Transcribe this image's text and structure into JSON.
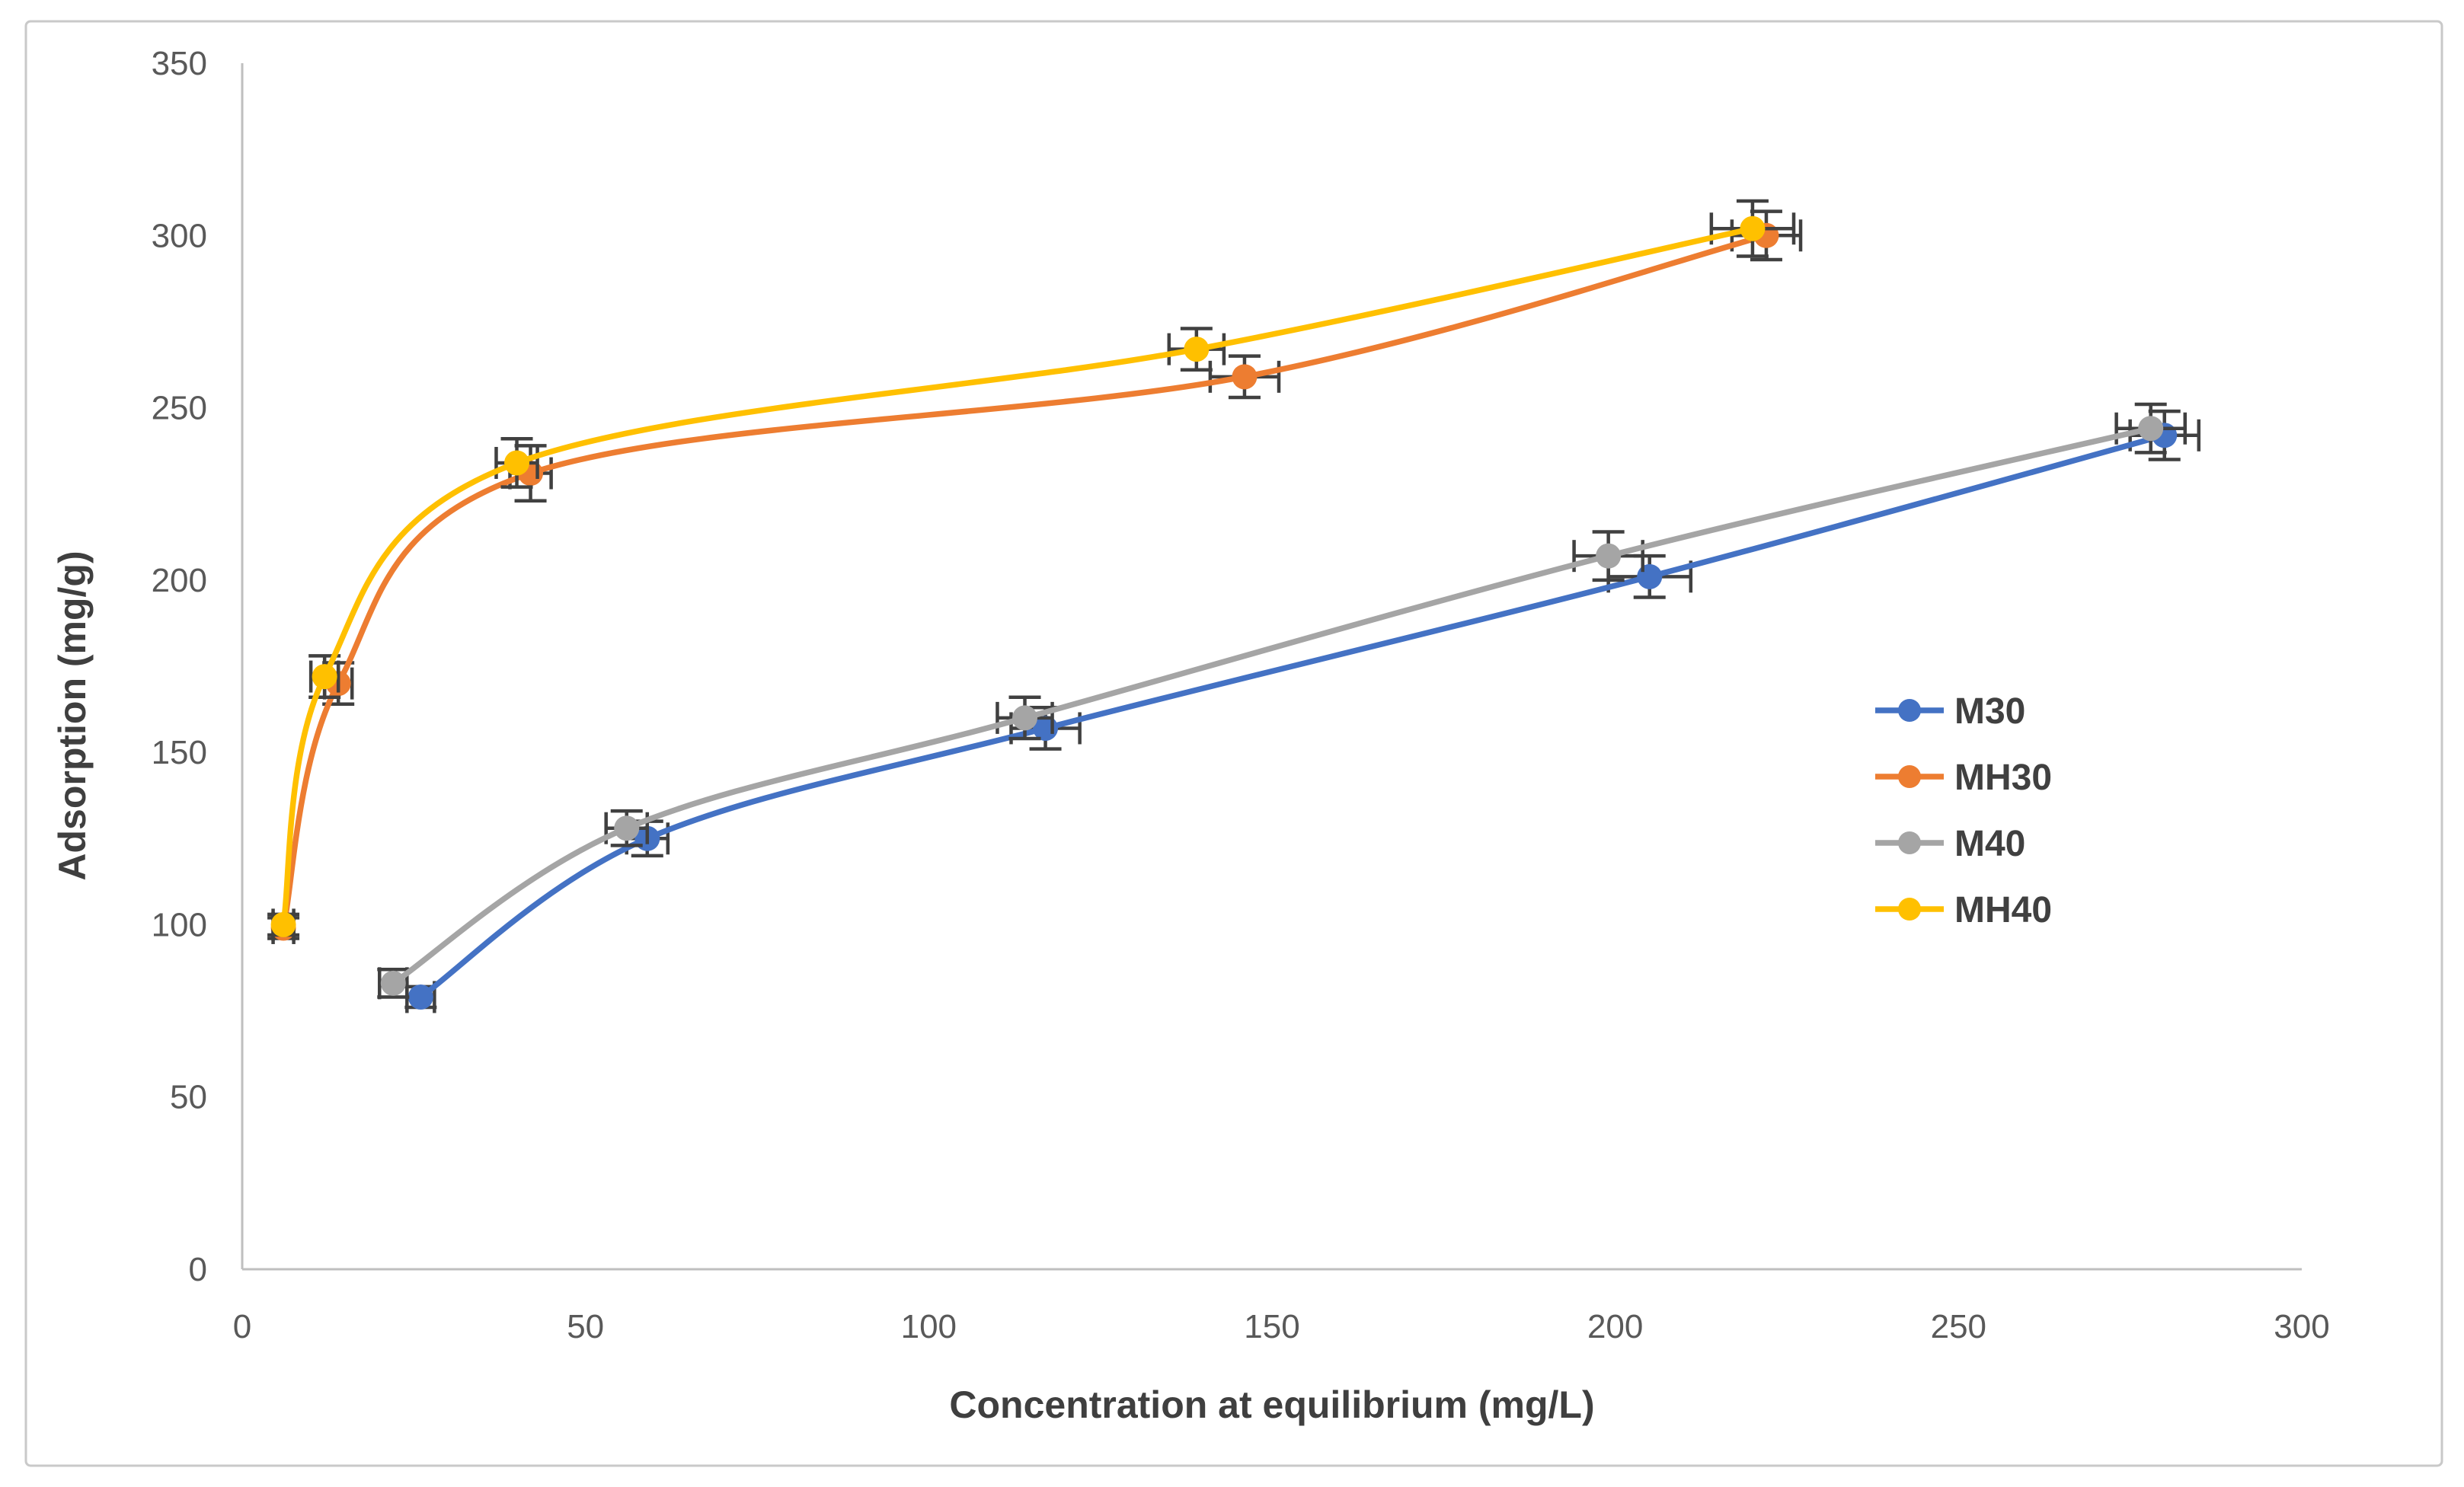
{
  "figure": {
    "background_color": "#FFFFFF",
    "border_color": "#C9C9C9",
    "axis_line_color": "#BFBFBF",
    "error_bar_color": "#404040",
    "tick_label_color": "#595959"
  },
  "chart_data": {
    "type": "line",
    "title": "",
    "xlabel": "Concentration at equilibrium (mg/L)",
    "ylabel": "Adsorption (mg/g)",
    "xlim": [
      0,
      300
    ],
    "ylim": [
      0,
      350
    ],
    "x_ticks": [
      0,
      50,
      100,
      150,
      200,
      250,
      300
    ],
    "y_ticks": [
      0,
      50,
      100,
      150,
      200,
      250,
      300,
      350
    ],
    "grid": false,
    "legend_position": "middle-right",
    "error_bars": true,
    "marker": "circle",
    "line_style": "smooth",
    "series": [
      {
        "name": "M30",
        "color": "#4472C4",
        "points": [
          {
            "x": 26,
            "y": 79,
            "xerr": 2,
            "yerr": 3
          },
          {
            "x": 59,
            "y": 125,
            "xerr": 3,
            "yerr": 5
          },
          {
            "x": 117,
            "y": 157,
            "xerr": 5,
            "yerr": 6
          },
          {
            "x": 205,
            "y": 201,
            "xerr": 6,
            "yerr": 6
          },
          {
            "x": 280,
            "y": 242,
            "xerr": 5,
            "yerr": 7
          }
        ]
      },
      {
        "name": "MH30",
        "color": "#ED7D31",
        "points": [
          {
            "x": 6,
            "y": 99,
            "xerr": 1.5,
            "yerr": 3
          },
          {
            "x": 14,
            "y": 170,
            "xerr": 2,
            "yerr": 6
          },
          {
            "x": 42,
            "y": 231,
            "xerr": 3,
            "yerr": 8
          },
          {
            "x": 146,
            "y": 259,
            "xerr": 5,
            "yerr": 6
          },
          {
            "x": 222,
            "y": 300,
            "xerr": 5,
            "yerr": 7
          }
        ]
      },
      {
        "name": "M40",
        "color": "#A5A5A5",
        "points": [
          {
            "x": 22,
            "y": 83,
            "xerr": 2,
            "yerr": 4
          },
          {
            "x": 56,
            "y": 128,
            "xerr": 3,
            "yerr": 5
          },
          {
            "x": 114,
            "y": 160,
            "xerr": 4,
            "yerr": 6
          },
          {
            "x": 199,
            "y": 207,
            "xerr": 5,
            "yerr": 7
          },
          {
            "x": 278,
            "y": 244,
            "xerr": 5,
            "yerr": 7
          }
        ]
      },
      {
        "name": "MH40",
        "color": "#FFC000",
        "points": [
          {
            "x": 6,
            "y": 100,
            "xerr": 1.5,
            "yerr": 3
          },
          {
            "x": 12,
            "y": 172,
            "xerr": 2,
            "yerr": 6
          },
          {
            "x": 40,
            "y": 234,
            "xerr": 3,
            "yerr": 7
          },
          {
            "x": 139,
            "y": 267,
            "xerr": 4,
            "yerr": 6
          },
          {
            "x": 220,
            "y": 302,
            "xerr": 6,
            "yerr": 8
          }
        ]
      }
    ]
  }
}
